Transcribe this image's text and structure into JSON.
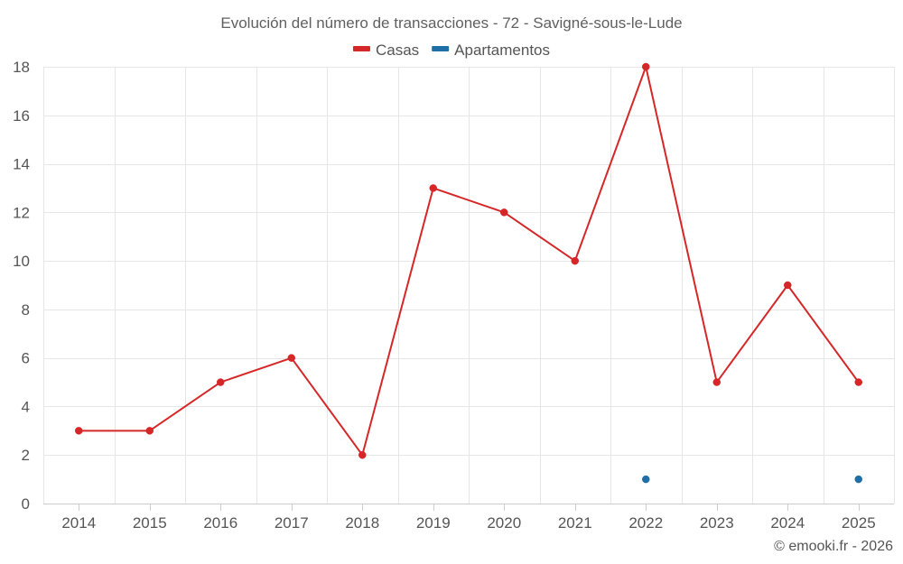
{
  "chart_data": {
    "type": "line",
    "title": "Evolución del número de transacciones - 72 - Savigné-sous-le-Lude",
    "xlabel": "",
    "ylabel": "",
    "categories": [
      "2014",
      "2015",
      "2016",
      "2017",
      "2018",
      "2019",
      "2020",
      "2021",
      "2022",
      "2023",
      "2024",
      "2025"
    ],
    "ylim": [
      0,
      18
    ],
    "yticks": [
      0,
      2,
      4,
      6,
      8,
      10,
      12,
      14,
      16,
      18
    ],
    "grid": true,
    "legend_position": "top-center",
    "series": [
      {
        "name": "Casas",
        "color": "#d62728",
        "values": [
          3,
          3,
          5,
          6,
          2,
          13,
          12,
          10,
          18,
          5,
          9,
          5
        ]
      },
      {
        "name": "Apartamentos",
        "color": "#1f6fa8",
        "values": [
          null,
          null,
          null,
          null,
          null,
          null,
          null,
          null,
          1,
          null,
          null,
          1
        ]
      }
    ]
  },
  "credit": "© emooki.fr - 2026"
}
